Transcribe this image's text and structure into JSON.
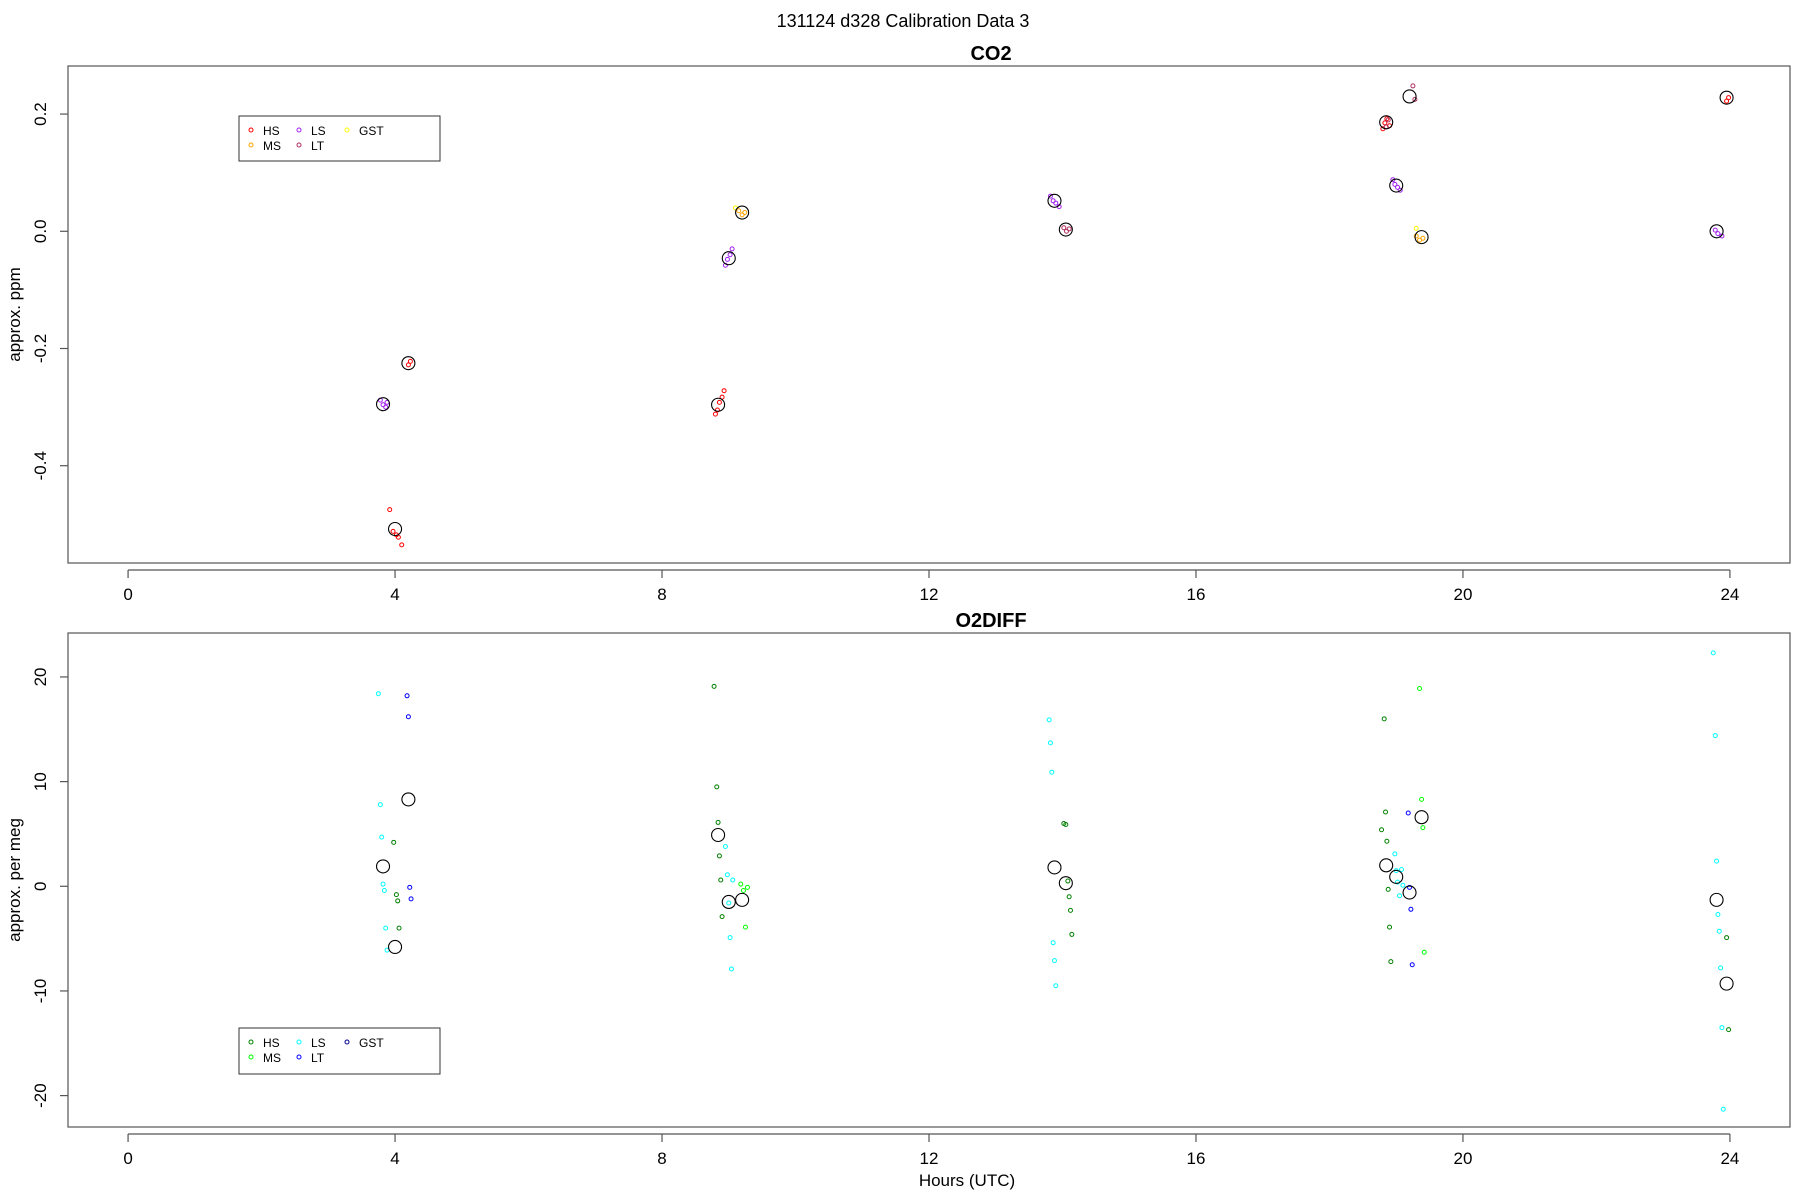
{
  "page": {
    "title": "131124   d328   Calibration Data 3"
  },
  "chart_data": [
    {
      "type": "scatter",
      "title": "CO2",
      "xlabel": "",
      "ylabel": "approx. ppm",
      "xlim": [
        -0.9,
        24.9
      ],
      "ylim": [
        -0.566,
        0.282
      ],
      "xticks": [
        0,
        4,
        8,
        12,
        16,
        20,
        24
      ],
      "yticks": [
        -0.4,
        -0.2,
        0.0,
        0.2
      ],
      "ytick_labels": [
        "-0.4",
        "-0.2",
        "0.0",
        "0.2"
      ],
      "grid": false,
      "legend_position": "top-left",
      "series": [
        {
          "name": "HS",
          "color": "#ff0000",
          "x": [
            3.92,
            3.97,
            4.02,
            4.05,
            4.1,
            4.2,
            4.23,
            8.8,
            8.83,
            8.86,
            8.9,
            8.93,
            18.8,
            18.83,
            18.86,
            18.9,
            23.95,
            23.98
          ],
          "y": [
            -0.475,
            -0.512,
            -0.518,
            -0.522,
            -0.535,
            -0.228,
            -0.222,
            -0.312,
            -0.305,
            -0.292,
            -0.283,
            -0.272,
            0.175,
            0.185,
            0.192,
            0.18,
            0.222,
            0.228
          ]
        },
        {
          "name": "MS",
          "color": "#ffa500",
          "x": [
            9.15,
            9.2,
            9.24,
            19.3,
            19.35,
            19.4
          ],
          "y": [
            0.035,
            0.028,
            0.032,
            -0.008,
            -0.015,
            -0.012
          ]
        },
        {
          "name": "LS",
          "color": "#a020f0",
          "x": [
            3.78,
            3.82,
            3.86,
            3.88,
            8.95,
            8.98,
            9.02,
            9.05,
            13.82,
            13.86,
            13.9,
            13.95,
            18.95,
            18.98,
            19.02,
            19.06,
            23.78,
            23.82,
            23.88
          ],
          "y": [
            -0.288,
            -0.296,
            -0.3,
            -0.292,
            -0.058,
            -0.048,
            -0.04,
            -0.03,
            0.06,
            0.052,
            0.048,
            0.042,
            0.088,
            0.08,
            0.075,
            0.07,
            0.002,
            -0.004,
            -0.008
          ]
        },
        {
          "name": "LT",
          "color": "#b03060",
          "x": [
            14.02,
            14.06,
            14.1,
            18.85,
            18.88,
            19.25,
            19.28
          ],
          "y": [
            0.006,
            0.0,
            0.004,
            0.178,
            0.19,
            0.248,
            0.225
          ]
        },
        {
          "name": "GST",
          "color": "#ffff00",
          "x": [
            9.1,
            19.3
          ],
          "y": [
            0.04,
            0.005
          ]
        },
        {
          "name": "",
          "color": "#000000",
          "marker": "large-circle",
          "x": [
            3.82,
            4.0,
            4.2,
            8.84,
            9.0,
            9.2,
            13.88,
            14.05,
            18.85,
            19.0,
            19.2,
            19.38,
            23.8,
            23.95
          ],
          "y": [
            -0.295,
            -0.508,
            -0.225,
            -0.296,
            -0.046,
            0.032,
            0.052,
            0.003,
            0.186,
            0.078,
            0.23,
            -0.01,
            0.0,
            0.228
          ]
        }
      ]
    },
    {
      "type": "scatter",
      "title": "O2DIFF",
      "xlabel": "Hours (UTC)",
      "ylabel": "approx. per meg",
      "xlim": [
        -0.9,
        24.9
      ],
      "ylim": [
        -23.0,
        24.2
      ],
      "xticks": [
        0,
        4,
        8,
        12,
        16,
        20,
        24
      ],
      "yticks": [
        -20,
        -10,
        0,
        10,
        20
      ],
      "ytick_labels": [
        "-20",
        "-10",
        "0",
        "10",
        "20"
      ],
      "grid": false,
      "legend_position": "bottom-left",
      "series": [
        {
          "name": "HS",
          "color": "#008000",
          "x": [
            3.98,
            4.02,
            4.04,
            4.06,
            8.78,
            8.82,
            8.84,
            8.86,
            8.88,
            8.9,
            14.02,
            14.05,
            14.08,
            14.1,
            14.12,
            14.14,
            18.78,
            18.82,
            18.84,
            18.86,
            18.88,
            18.9,
            18.92,
            23.95,
            23.98
          ],
          "y": [
            4.2,
            -0.8,
            -1.4,
            -4.0,
            19.1,
            9.5,
            6.1,
            2.9,
            0.6,
            -2.9,
            6.0,
            5.9,
            0.5,
            -1.0,
            -2.3,
            -4.6,
            5.4,
            16.0,
            7.1,
            4.3,
            -0.3,
            -3.9,
            -7.2,
            -4.9,
            -13.7
          ]
        },
        {
          "name": "MS",
          "color": "#00ff00",
          "x": [
            9.18,
            9.22,
            9.25,
            9.28,
            19.35,
            19.38,
            19.4,
            19.42
          ],
          "y": [
            0.2,
            -0.4,
            -3.9,
            -0.1,
            18.9,
            8.3,
            5.6,
            -6.3
          ]
        },
        {
          "name": "LS",
          "color": "#00ffff",
          "x": [
            3.75,
            3.78,
            3.8,
            3.82,
            3.84,
            3.86,
            3.88,
            8.95,
            8.98,
            9.0,
            9.02,
            9.04,
            9.06,
            13.8,
            13.82,
            13.84,
            13.86,
            13.88,
            13.9,
            18.98,
            19.0,
            19.02,
            19.05,
            19.08,
            19.1,
            23.75,
            23.78,
            23.8,
            23.82,
            23.84,
            23.86,
            23.88,
            23.9
          ],
          "y": [
            18.4,
            7.8,
            4.7,
            0.2,
            -0.4,
            -4.0,
            -6.1,
            3.8,
            1.1,
            -1.6,
            -4.9,
            -7.9,
            0.6,
            15.9,
            13.7,
            10.9,
            -5.4,
            -7.1,
            -9.5,
            3.1,
            1.5,
            0.4,
            -0.9,
            1.6,
            0.1,
            22.3,
            14.4,
            2.4,
            -2.7,
            -4.3,
            -7.8,
            -13.5,
            -21.3
          ]
        },
        {
          "name": "LT",
          "color": "#0000ff",
          "x": [
            4.18,
            4.2,
            4.22,
            4.24,
            19.18,
            19.2,
            19.22,
            19.24
          ],
          "y": [
            18.2,
            16.2,
            -0.1,
            -1.2,
            7.0,
            -0.1,
            -2.2,
            -7.5
          ]
        },
        {
          "name": "GST",
          "color": "#00008b",
          "x": [],
          "y": []
        },
        {
          "name": "",
          "color": "#000000",
          "marker": "large-circle",
          "x": [
            3.82,
            4.0,
            4.2,
            8.84,
            9.0,
            9.2,
            13.88,
            14.05,
            18.85,
            19.0,
            19.2,
            19.38,
            23.8,
            23.95
          ],
          "y": [
            1.9,
            -5.8,
            8.3,
            4.9,
            -1.5,
            -1.3,
            1.8,
            0.3,
            2.0,
            0.9,
            -0.6,
            6.6,
            -1.3,
            -9.3
          ]
        }
      ]
    }
  ]
}
